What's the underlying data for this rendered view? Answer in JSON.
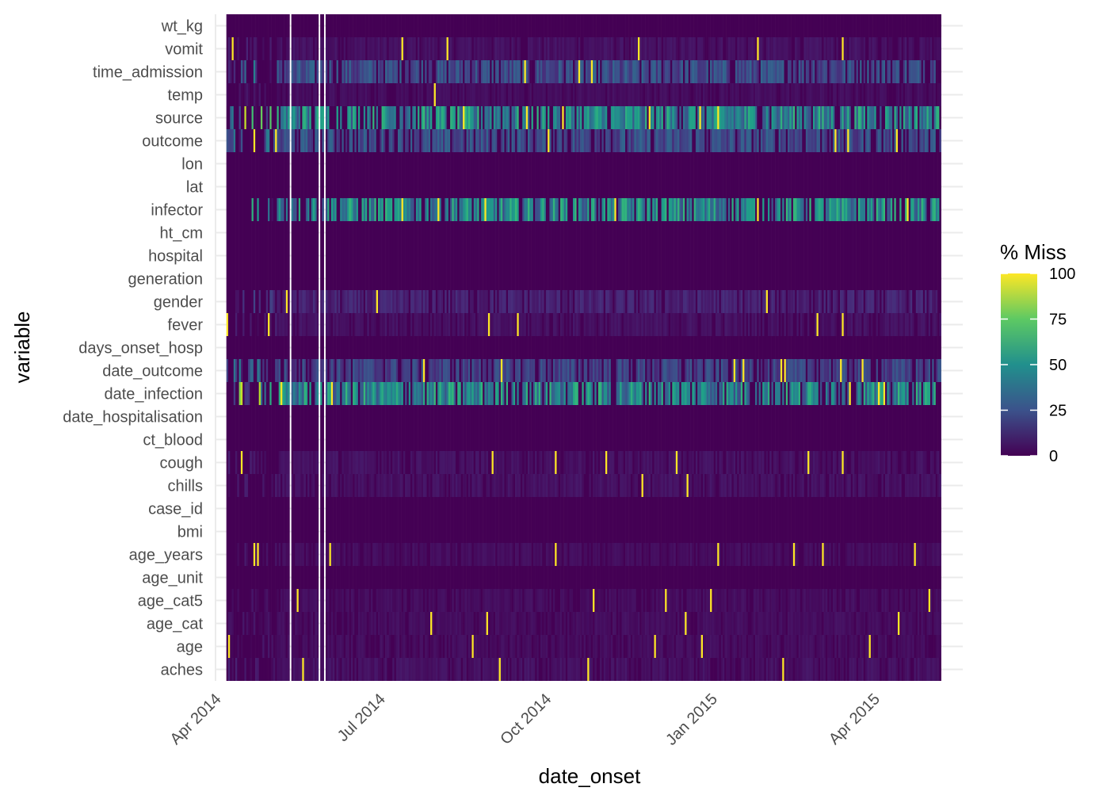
{
  "chart_data": {
    "type": "heatmap",
    "title": "",
    "xlabel": "date_onset",
    "ylabel": "variable",
    "legend": {
      "title": "% Miss",
      "ticks": [
        0,
        25,
        50,
        75,
        100
      ],
      "range": [
        0,
        100
      ],
      "palette": "viridis",
      "placement": "right"
    },
    "x_axis": {
      "type": "date",
      "range": [
        "2014-04-01",
        "2015-05-20"
      ],
      "data_range": [
        "2014-04-07",
        "2015-05-07"
      ],
      "ticks": [
        {
          "date": "2014-04-01",
          "label": "Apr 2014"
        },
        {
          "date": "2014-07-01",
          "label": "Jul 2014"
        },
        {
          "date": "2014-10-01",
          "label": "Oct 2014"
        },
        {
          "date": "2015-01-01",
          "label": "Jan 2015"
        },
        {
          "date": "2015-04-01",
          "label": "Apr 2015"
        }
      ],
      "gaps": [
        "2014-05-12",
        "2014-05-28",
        "2014-05-31"
      ]
    },
    "grid": true,
    "variables": [
      "wt_kg",
      "vomit",
      "time_admission",
      "temp",
      "source",
      "outcome",
      "lon",
      "lat",
      "infector",
      "ht_cm",
      "hospital",
      "generation",
      "gender",
      "fever",
      "days_onset_hosp",
      "date_outcome",
      "date_infection",
      "date_hospitalisation",
      "ct_blood",
      "cough",
      "chills",
      "case_id",
      "bmi",
      "age_years",
      "age_unit",
      "age_cat5",
      "age_cat",
      "age",
      "aches"
    ],
    "missing_profile": {
      "wt_kg": 0,
      "vomit": 4,
      "time_admission": 20,
      "temp": 3,
      "source": 40,
      "outcome": 20,
      "lon": 0,
      "lat": 0,
      "infector": 40,
      "ht_cm": 0,
      "hospital": 0,
      "generation": 0,
      "gender": 8,
      "fever": 4,
      "days_onset_hosp": 0,
      "date_outcome": 17,
      "date_infection": 40,
      "date_hospitalisation": 0,
      "ct_blood": 0,
      "cough": 4,
      "chills": 4,
      "case_id": 0,
      "bmi": 0,
      "age_years": 3,
      "age_unit": 0,
      "age_cat5": 3,
      "age_cat": 3,
      "age": 3,
      "aches": 4
    }
  }
}
